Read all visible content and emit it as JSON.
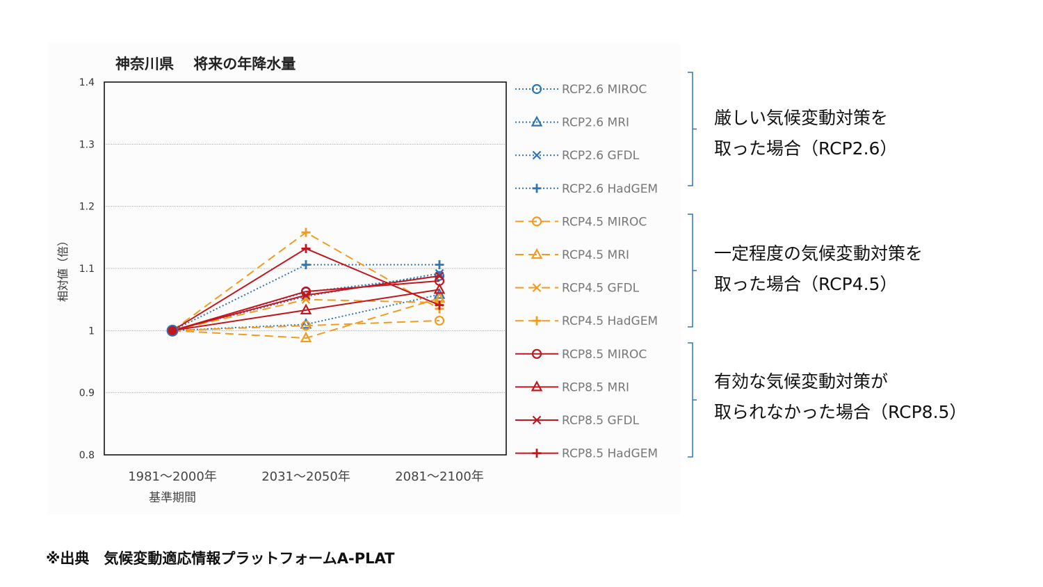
{
  "chart_data": {
    "type": "line",
    "title": "神奈川県　 将来の年降水量",
    "xlabel": "",
    "xlabel_sub": "基準期間",
    "ylabel": "相対値（倍）",
    "ylim": [
      0.8,
      1.4
    ],
    "yticks": [
      "0.8",
      "0.9",
      "1",
      "1.1",
      "1.2",
      "1.3",
      "1.4"
    ],
    "categories": [
      "1981～2000年",
      "2031～2050年",
      "2081～2100年"
    ],
    "grid": true,
    "legend_position": "right",
    "series": [
      {
        "name": "RCP2.6 MIROC",
        "scenario": "rcp26",
        "marker": "circle",
        "values": [
          1.0,
          1.062,
          1.088
        ]
      },
      {
        "name": "RCP2.6 MRI",
        "scenario": "rcp26",
        "marker": "triangle",
        "values": [
          1.0,
          1.01,
          1.058
        ]
      },
      {
        "name": "RCP2.6 GFDL",
        "scenario": "rcp26",
        "marker": "x",
        "values": [
          1.0,
          1.055,
          1.092
        ]
      },
      {
        "name": "RCP2.6 HadGEM",
        "scenario": "rcp26",
        "marker": "plus",
        "values": [
          1.0,
          1.106,
          1.106
        ]
      },
      {
        "name": "RCP4.5 MIROC",
        "scenario": "rcp45",
        "marker": "circle",
        "values": [
          1.0,
          1.008,
          1.016
        ]
      },
      {
        "name": "RCP4.5 MRI",
        "scenario": "rcp45",
        "marker": "triangle",
        "values": [
          1.0,
          0.988,
          1.052
        ]
      },
      {
        "name": "RCP4.5 GFDL",
        "scenario": "rcp45",
        "marker": "x",
        "values": [
          1.0,
          1.05,
          1.045
        ]
      },
      {
        "name": "RCP4.5 HadGEM",
        "scenario": "rcp45",
        "marker": "plus",
        "values": [
          1.0,
          1.158,
          1.035
        ]
      },
      {
        "name": "RCP8.5 MIROC",
        "scenario": "rcp85",
        "marker": "circle",
        "values": [
          1.0,
          1.063,
          1.08
        ]
      },
      {
        "name": "RCP8.5 MRI",
        "scenario": "rcp85",
        "marker": "triangle",
        "values": [
          1.0,
          1.033,
          1.066
        ]
      },
      {
        "name": "RCP8.5 GFDL",
        "scenario": "rcp85",
        "marker": "x",
        "values": [
          1.0,
          1.057,
          1.088
        ]
      },
      {
        "name": "RCP8.5 HadGEM",
        "scenario": "rcp85",
        "marker": "plus",
        "values": [
          1.0,
          1.132,
          1.041
        ]
      }
    ]
  },
  "styles": {
    "rcp26": {
      "color": "#2e75b6",
      "dash": "2 3"
    },
    "rcp45": {
      "color": "#f29c1f",
      "dash": "12 7"
    },
    "rcp85": {
      "color": "#c0161c",
      "dash": ""
    },
    "bracket_color": "#2e75b6",
    "baseline_marker_color": "#c0161c",
    "baseline_marker_ring": "#2e75b6"
  },
  "groups": [
    {
      "line1": "厳しい気候変動対策を",
      "line2": "取った場合（RCP2.6）"
    },
    {
      "line1": "一定程度の気候変動対策を",
      "line2": "取った場合（RCP4.5）"
    },
    {
      "line1": "有効な気候変動対策が",
      "line2": "取られなかった場合（RCP8.5）"
    }
  ],
  "source_note": "※出典　気候変動適応情報プラットフォームA-PLAT"
}
